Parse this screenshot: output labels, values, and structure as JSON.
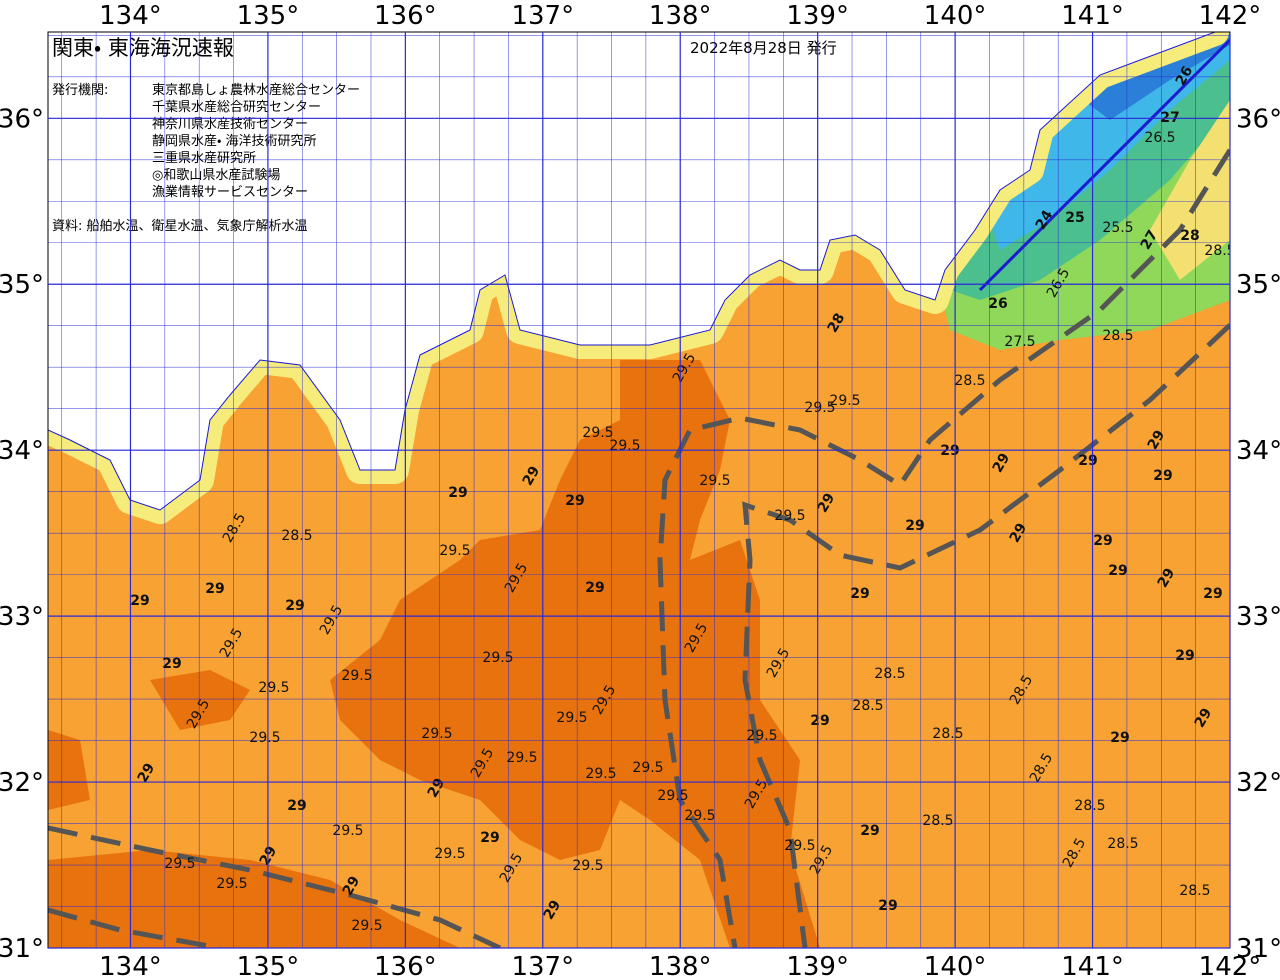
{
  "map": {
    "title": "関東・ 東海海況速報",
    "issued": "2022年8月28日 発行",
    "issuer_label": "発行機関:",
    "issuers": [
      "東京都島しょ農林水産総合センター",
      "千葉県水産総合研究センター",
      "神奈川県水産技術センター",
      "静岡県水産・ 海洋技術研究所",
      "三重県水産研究所",
      "◎和歌山県水産試験場",
      "漁業情報サービスセンター"
    ],
    "source": "資料: 船舶水温、衛星水温、気象庁解析水温",
    "lonlim": [
      133.4,
      142
    ],
    "latlim": [
      31,
      36.52
    ],
    "lon_ticks": [
      {
        "value": 134,
        "label": "134°"
      },
      {
        "value": 135,
        "label": "135°"
      },
      {
        "value": 136,
        "label": "136°"
      },
      {
        "value": 137,
        "label": "137°"
      },
      {
        "value": 138,
        "label": "138°"
      },
      {
        "value": 139,
        "label": "139°"
      },
      {
        "value": 140,
        "label": "140°"
      },
      {
        "value": 141,
        "label": "141°"
      },
      {
        "value": 142,
        "label": "142°"
      }
    ],
    "lat_ticks": [
      {
        "value": 31,
        "label": "31°"
      },
      {
        "value": 32,
        "label": "32°"
      },
      {
        "value": 33,
        "label": "33°"
      },
      {
        "value": 34,
        "label": "34°"
      },
      {
        "value": 35,
        "label": "35°"
      },
      {
        "value": 36,
        "label": "36°"
      }
    ],
    "contour_labels": [
      26,
      27,
      26.5,
      24,
      25,
      25.5,
      27,
      28,
      28.5,
      26.5,
      28.5,
      28.5,
      29,
      29,
      29,
      29,
      29,
      29,
      29,
      29,
      29,
      29,
      29,
      29,
      29,
      29,
      28.5,
      28.5,
      28.5,
      28.5,
      28.5,
      28.5,
      28.5,
      28.5,
      28.5,
      28.5,
      28,
      29.5,
      29.5,
      29,
      29.5,
      29,
      29.5,
      29,
      29.5,
      29.5,
      29,
      29.5,
      29.5,
      29,
      29.5,
      29.5,
      29.5,
      29.5,
      29,
      29,
      29,
      29.5,
      29.5,
      29,
      29.5,
      29.5,
      29.5,
      29.5,
      29,
      29,
      28.5,
      28.5,
      29,
      29.5,
      29,
      29.5,
      29.5,
      29.5,
      29.5,
      29.5,
      29.5,
      29.5,
      29.5,
      29.5,
      29.5,
      29,
      29.5,
      29.5,
      29,
      29,
      29.5,
      29,
      29.5,
      29.5,
      29,
      29.5,
      29,
      29.5,
      29.5,
      29.5,
      29,
      26,
      27.5
    ]
  }
}
